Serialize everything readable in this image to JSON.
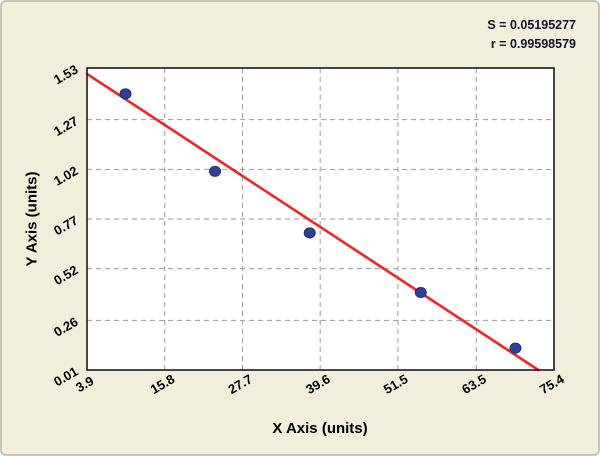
{
  "chart_data": {
    "type": "scatter",
    "title": "",
    "xlabel": "X Axis (units)",
    "ylabel": "Y Axis (units)",
    "xlim": [
      3.9,
      75.4
    ],
    "ylim": [
      0.01,
      1.53
    ],
    "x_ticks": [
      3.9,
      15.8,
      27.7,
      39.6,
      51.5,
      63.5,
      75.4
    ],
    "x_tick_labels": [
      "3.9",
      "15.8",
      "27.7",
      "39.6",
      "51.5",
      "63.5",
      "75.4"
    ],
    "y_ticks": [
      0.01,
      0.26,
      0.52,
      0.77,
      1.02,
      1.27,
      1.53
    ],
    "y_tick_labels": [
      "0.01",
      "0.26",
      "0.52",
      "0.77",
      "1.02",
      "1.27",
      "1.53"
    ],
    "grid": "dashed",
    "legend": "none",
    "points": [
      {
        "x": 9.8,
        "y": 1.4
      },
      {
        "x": 23.5,
        "y": 1.01
      },
      {
        "x": 38.0,
        "y": 0.7
      },
      {
        "x": 55.0,
        "y": 0.4
      },
      {
        "x": 69.5,
        "y": 0.12
      }
    ],
    "fit_line": {
      "x1": 3.9,
      "y1": 1.5,
      "x2": 73.0,
      "y2": 0.01
    },
    "stats": {
      "s": "S = 0.05195277",
      "r": "r = 0.99598579"
    },
    "colors": {
      "background": "#f1eedb",
      "plot_background": "#ffffff",
      "point": "#2e4095",
      "point_stroke": "#1c2a66",
      "line": "#f42222",
      "grid": "#9a9a9a",
      "border": "#1a1a1a",
      "text": "#000000"
    }
  }
}
